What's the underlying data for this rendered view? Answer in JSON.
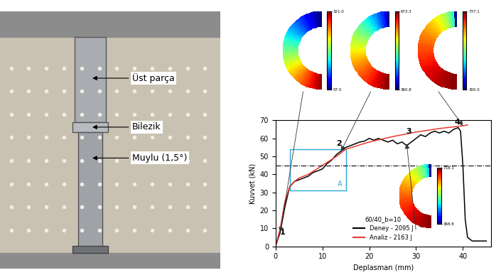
{
  "chart_data": {
    "type": "line",
    "x_label": "Deplasman (mm)",
    "y_label": "Kuvvet (kN)",
    "xlim": [
      0,
      46
    ],
    "xticks": [
      0,
      10,
      20,
      30,
      40
    ],
    "ylim": [
      0,
      70
    ],
    "yticks": [
      0,
      10,
      20,
      30,
      40,
      50,
      60,
      70
    ],
    "legend": "lower center",
    "legend_title": "60/40_b=10",
    "series": [
      {
        "name": "Deney - 2095 J",
        "color": "#000000",
        "line_style": "solid",
        "x": [
          0,
          1,
          2,
          3,
          4,
          5,
          6,
          7,
          8,
          9,
          10,
          11,
          12,
          13,
          14,
          15,
          16,
          17,
          18,
          19,
          20,
          21,
          22,
          23,
          24,
          25,
          26,
          27,
          28,
          29,
          30,
          31,
          32,
          33,
          34,
          35,
          36,
          37,
          38,
          39,
          39.5,
          40,
          40.5,
          41,
          42,
          45
        ],
        "values": [
          0,
          8,
          22,
          33,
          36,
          37,
          38,
          39,
          41,
          42,
          43,
          46,
          48,
          51,
          53,
          55,
          56,
          57,
          58,
          58.5,
          60,
          59,
          60,
          59,
          58,
          59,
          57,
          58,
          56,
          58,
          60,
          62,
          61,
          63,
          64,
          63,
          64,
          63,
          65,
          66,
          64,
          45,
          15,
          5,
          3,
          3
        ]
      },
      {
        "name": "Analiz - 2163 J",
        "color": "#e8392f",
        "line_style": "solid",
        "x": [
          0,
          1,
          2,
          3,
          4,
          5,
          7,
          10,
          13,
          15,
          20,
          25,
          30,
          35,
          40,
          41
        ],
        "values": [
          0,
          10,
          25,
          33,
          36,
          38,
          40,
          45,
          50,
          54,
          58,
          61,
          63.5,
          65.5,
          67,
          67.5
        ]
      }
    ],
    "hline": 45,
    "box": {
      "label": "A",
      "x": [
        3,
        15
      ],
      "y": [
        31,
        54
      ],
      "color": "#29a8d8"
    },
    "annotations": [
      {
        "text": "1",
        "x": 1.5,
        "y": 6
      },
      {
        "text": "2",
        "x": 13.5,
        "y": 55
      },
      {
        "text": "3",
        "x": 28.5,
        "y": 62
      },
      {
        "text": "4",
        "x": 38.8,
        "y": 67
      }
    ]
  },
  "photo_labels": [
    "Üst parça",
    "Bilezik",
    "Muylu (1,5°)"
  ],
  "contour_plots": [
    {
      "clim": [
        57.5,
        321.0
      ],
      "cticks": [
        57.5,
        321.0
      ],
      "point": [
        1,
        8
      ]
    },
    {
      "clim": [
        360.8,
        673.3
      ],
      "cticks": [
        360.8,
        673.3
      ],
      "point": [
        14,
        53
      ]
    },
    {
      "clim": [
        300.0,
        737.1
      ],
      "cticks": [
        300.0,
        737.1
      ],
      "point": [
        40,
        67
      ]
    },
    {
      "clim": [
        368.8,
        718.1
      ],
      "cticks": [
        368.8,
        718.1
      ],
      "point": [
        28,
        57
      ]
    }
  ]
}
